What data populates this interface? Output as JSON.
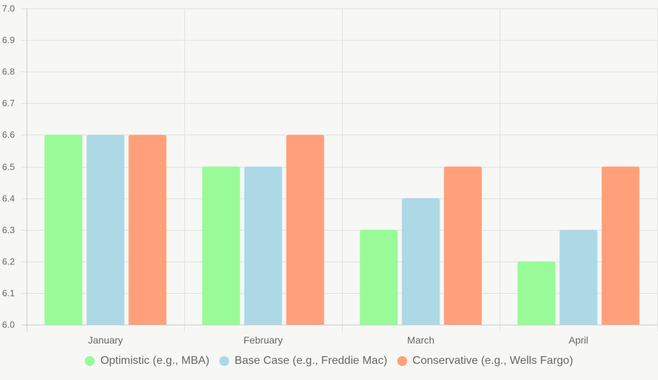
{
  "chart_data": {
    "type": "bar",
    "title": "",
    "xlabel": "",
    "ylabel": "",
    "categories": [
      "January",
      "February",
      "March",
      "April"
    ],
    "series": [
      {
        "name": "Optimistic (e.g., MBA)",
        "color": "#98fb98",
        "values": [
          6.6,
          6.5,
          6.3,
          6.2
        ]
      },
      {
        "name": "Base Case (e.g., Freddie Mac)",
        "color": "#add8e6",
        "values": [
          6.6,
          6.5,
          6.4,
          6.3
        ]
      },
      {
        "name": "Conservative (e.g., Wells Fargo)",
        "color": "#ffa07a",
        "values": [
          6.6,
          6.6,
          6.5,
          6.5
        ]
      }
    ],
    "ylim": [
      6.0,
      7.0
    ],
    "yticks": [
      "6.0",
      "6.1",
      "6.2",
      "6.3",
      "6.4",
      "6.5",
      "6.6",
      "6.7",
      "6.8",
      "6.9",
      "7.0"
    ],
    "grid": true,
    "legend_position": "bottom"
  },
  "legend": {
    "items": [
      {
        "label": "Optimistic (e.g., MBA)",
        "color": "#98fb98"
      },
      {
        "label": "Base Case (e.g., Freddie Mac)",
        "color": "#add8e6"
      },
      {
        "label": "Conservative (e.g., Wells Fargo)",
        "color": "#ffa07a"
      }
    ]
  }
}
